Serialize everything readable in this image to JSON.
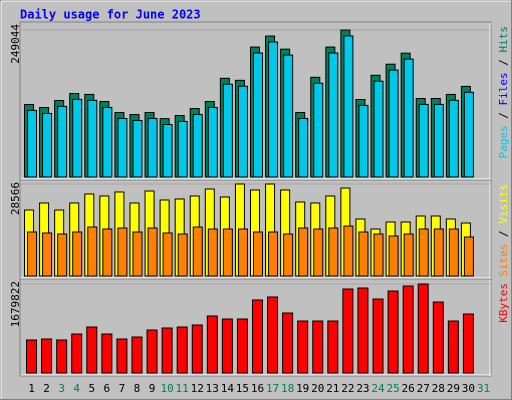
{
  "chart_data": {
    "type": "bar",
    "title": "Daily usage for June 2023",
    "separator": " / ",
    "categories": [
      "1",
      "2",
      "3",
      "4",
      "5",
      "6",
      "7",
      "8",
      "9",
      "10",
      "11",
      "12",
      "13",
      "14",
      "15",
      "16",
      "17",
      "18",
      "19",
      "20",
      "21",
      "22",
      "23",
      "24",
      "25",
      "26",
      "27",
      "28",
      "29",
      "30",
      "31"
    ],
    "category_colors": [
      "#000000",
      "#000000",
      "#00805c",
      "#00805c",
      "#000000",
      "#000000",
      "#000000",
      "#000000",
      "#000000",
      "#00805c",
      "#00805c",
      "#000000",
      "#000000",
      "#000000",
      "#000000",
      "#000000",
      "#00805c",
      "#00805c",
      "#000000",
      "#000000",
      "#000000",
      "#000000",
      "#000000",
      "#00805c",
      "#00805c",
      "#000000",
      "#000000",
      "#000000",
      "#000000",
      "#000000",
      "#00805c"
    ],
    "panels": [
      {
        "ylim": [
          0,
          249044
        ],
        "yticks": [
          249044
        ],
        "tick_color": "#000000",
        "series": [
          {
            "name": "Hits",
            "color": "#00805c",
            "values": [
              122800,
              117700,
              129600,
              141500,
              139900,
              127900,
              109200,
              105800,
              109200,
              98900,
              104100,
              116000,
              127900,
              167200,
              163800,
              220100,
              238800,
              216600,
              109200,
              168900,
              220100,
              249044,
              131300,
              172300,
              191100,
              209800,
              133000,
              133000,
              139900,
              153500,
              null
            ]
          },
          {
            "name": "Files",
            "color": "#0000ff",
            "values": [
              null,
              null,
              null,
              null,
              null,
              null,
              null,
              null,
              null,
              null,
              null,
              null,
              null,
              null,
              null,
              null,
              null,
              null,
              null,
              null,
              null,
              null,
              null,
              null,
              null,
              null,
              null,
              null,
              null,
              null,
              null
            ]
          },
          {
            "name": "Pages",
            "color": "#00c8e8",
            "values": [
              112800,
              107700,
              119600,
              131500,
              129900,
              117900,
              99200,
              95800,
              99200,
              88900,
              94100,
              106000,
              117900,
              157200,
              153800,
              210100,
              228800,
              206600,
              99200,
              158900,
              210100,
              239000,
              121300,
              162300,
              181100,
              199800,
              123000,
              123000,
              129900,
              143500,
              null
            ]
          }
        ]
      },
      {
        "ylim": [
          0,
          28566
        ],
        "yticks": [
          28566
        ],
        "tick_color": "#000000",
        "series": [
          {
            "name": "Visits",
            "color": "#ffff00",
            "values": [
              20490,
              22670,
              20490,
              22670,
              25460,
              24840,
              26080,
              22670,
              26390,
              23600,
              23910,
              24840,
              27010,
              24530,
              28566,
              26700,
              28566,
              26700,
              22980,
              22670,
              24840,
              27320,
              17700,
              14590,
              16770,
              16770,
              18630,
              18630,
              17700,
              16460,
              null
            ]
          },
          {
            "name": "Sites",
            "color": "#ff8000",
            "values": [
              13660,
              13350,
              13040,
              13660,
              15200,
              14590,
              14900,
              13660,
              14900,
              13350,
              13040,
              15200,
              14590,
              14590,
              14590,
              13660,
              13660,
              13040,
              14900,
              14590,
              14900,
              15500,
              13660,
              13040,
              12420,
              13040,
              14590,
              14590,
              14590,
              12110,
              null
            ]
          }
        ]
      },
      {
        "ylim": [
          0,
          1679822
        ],
        "yticks": [
          1679822
        ],
        "tick_color": "#000000",
        "series": [
          {
            "name": "KBytes",
            "color": "#ff0000",
            "values": [
              623000,
              641700,
              623000,
              736100,
              868200,
              736100,
              641700,
              679500,
              811600,
              849400,
              868200,
              906000,
              1075900,
              1019200,
              1019200,
              1377900,
              1434500,
              1132500,
              981400,
              981400,
              981400,
              1585400,
              1604300,
              1396700,
              1547600,
              1642100,
              1679822,
              1339800,
              981400,
              1113600,
              null
            ]
          }
        ]
      }
    ]
  }
}
